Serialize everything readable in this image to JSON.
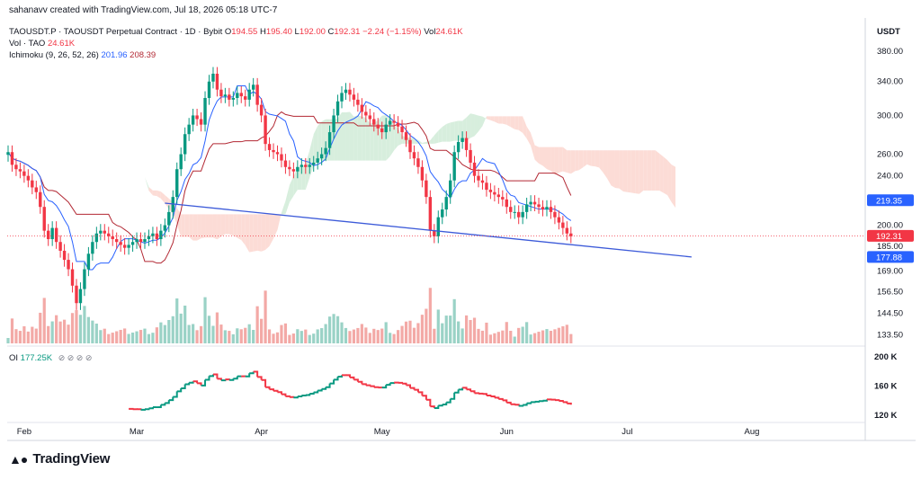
{
  "author_line": "sahanavv created with TradingView.com, Jul 18, 2026 05:18 UTC-7",
  "legend": {
    "symbol": "TAOUSDT.P · TAOUSDT Perpetual Contract · 1D · Bybit",
    "o_label": "O",
    "o": "194.55",
    "h_label": "H",
    "h": "195.40",
    "l_label": "L",
    "l": "192.00",
    "c_label": "C",
    "c": "192.31",
    "chg": "−2.24 (−1.15%)",
    "vol_label": "Vol",
    "vol": "24.61K",
    "vol_tao_label": "Vol · TAO",
    "vol_tao": "24.61K",
    "ichimoku_label": "Ichimoku (9, 26, 52, 26)",
    "ichi_1": "201.96",
    "ichi_2": "208.39",
    "oi_label": "OI",
    "oi": "177.25K",
    "oi_icons": "⊘ ⊘ ⊘ ⊘"
  },
  "brand": "TradingView",
  "colors": {
    "up": "#089981",
    "down": "#f23645",
    "tenkan": "#2962ff",
    "kijun": "#b22833",
    "cloud_bull": "#d7eedd",
    "cloud_bear": "#fcdcd6",
    "trend": "#3d5bd9",
    "vol_up": "#9ad2c6",
    "vol_down": "#f3a9a6"
  },
  "chart_data": {
    "type": "candlestick",
    "unit": "USDT",
    "price_ticks": [
      "380.00",
      "340.00",
      "300.00",
      "260.00",
      "240.00",
      "200.00",
      "185.00",
      "169.00",
      "156.50",
      "144.50",
      "133.50"
    ],
    "price_tick_values": [
      380,
      340,
      300,
      260,
      240,
      200,
      185,
      169,
      156.5,
      144.5,
      133.5
    ],
    "price_badges": [
      {
        "value": 219.35,
        "label": "219.35",
        "color": "#2962ff"
      },
      {
        "value": 192.31,
        "label": "192.31",
        "color": "#f23645"
      },
      {
        "value": 177.88,
        "label": "177.88",
        "color": "#2962ff"
      }
    ],
    "x_labels": [
      "Feb",
      "Mar",
      "Apr",
      "May",
      "Jun",
      "Jul",
      "Aug"
    ],
    "x_label_days": [
      4,
      32,
      63,
      93,
      124,
      154,
      185
    ],
    "oi_ticks": [
      "200 K",
      "160 K",
      "120 K"
    ],
    "oi_tick_values": [
      200,
      160,
      120
    ],
    "closes": [
      262,
      250,
      246,
      244,
      240,
      236,
      230,
      226,
      214,
      196,
      190,
      198,
      188,
      182,
      176,
      170,
      160,
      150,
      158,
      170,
      180,
      188,
      194,
      196,
      194,
      192,
      190,
      188,
      186,
      184,
      186,
      188,
      190,
      188,
      190,
      192,
      194,
      190,
      196,
      200,
      210,
      222,
      246,
      260,
      280,
      290,
      300,
      296,
      290,
      320,
      340,
      350,
      330,
      322,
      324,
      318,
      320,
      326,
      322,
      318,
      330,
      336,
      312,
      300,
      270,
      264,
      262,
      260,
      254,
      248,
      246,
      244,
      248,
      250,
      248,
      250,
      252,
      256,
      260,
      266,
      282,
      300,
      316,
      326,
      330,
      324,
      318,
      312,
      304,
      300,
      296,
      290,
      286,
      282,
      290,
      294,
      292,
      288,
      282,
      274,
      262,
      256,
      248,
      236,
      222,
      196,
      192,
      206,
      212,
      222,
      236,
      262,
      272,
      276,
      264,
      252,
      240,
      236,
      234,
      228,
      226,
      224,
      222,
      220,
      214,
      210,
      210,
      206,
      210,
      216,
      218,
      216,
      214,
      212,
      214,
      210,
      206,
      202,
      198,
      194,
      192
    ],
    "trendline": {
      "from_day": 39,
      "from_price": 217,
      "to_day": 170,
      "to_price": 177.88
    }
  }
}
